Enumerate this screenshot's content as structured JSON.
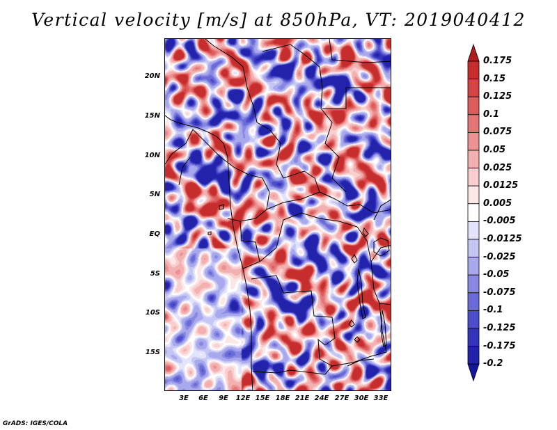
{
  "title": "Vertical velocity [m/s] at 850hPa, VT: 2019040412",
  "lat_labels": [
    "20N",
    "15N",
    "10N",
    "5N",
    "EQ",
    "5S",
    "10S",
    "15S"
  ],
  "lon_labels": [
    "3E",
    "6E",
    "9E",
    "12E",
    "15E",
    "18E",
    "21E",
    "24E",
    "27E",
    "30E",
    "33E"
  ],
  "colorbar": {
    "labels": [
      "0.175",
      "0.15",
      "0.125",
      "0.1",
      "0.075",
      "0.05",
      "0.025",
      "0.0125",
      "0.005",
      "-0.005",
      "-0.0125",
      "-0.025",
      "-0.05",
      "-0.075",
      "-0.1",
      "-0.125",
      "-0.175",
      "-0.2"
    ],
    "colors": [
      "#b01d1d",
      "#c62d2d",
      "#d44444",
      "#dd5c5c",
      "#e57676",
      "#ec9292",
      "#f3b0b0",
      "#f8cece",
      "#fce6e6",
      "#ffffff",
      "#e3e3fb",
      "#c6c6f4",
      "#a8a8ec",
      "#8888e2",
      "#6a6ad8",
      "#4e4ecc",
      "#3434bd",
      "#2222aa",
      "#1515a0"
    ]
  },
  "credit": "GrADS: IGES/COLA"
}
